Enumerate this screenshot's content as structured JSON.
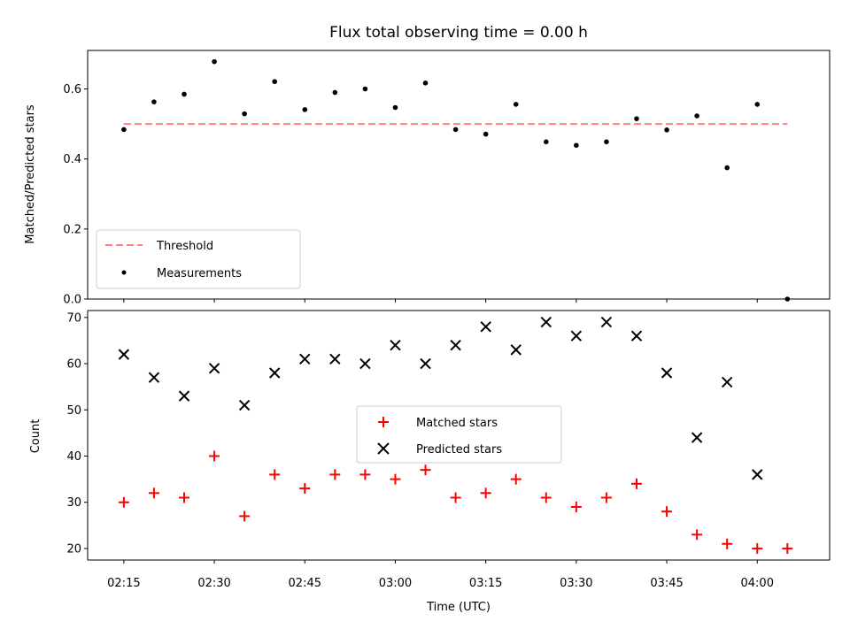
{
  "chart_data": [
    {
      "type": "scatter",
      "title": "Flux total observing time = 0.00 h",
      "ylabel": "Matched/Predicted stars",
      "xlabel": "",
      "x_time_axis": true,
      "xlim": [
        "02:09",
        "04:12"
      ],
      "ylim": [
        0,
        0.71
      ],
      "yticks": [
        0.0,
        0.2,
        0.4,
        0.6
      ],
      "ytick_labels": [
        "0.0",
        "0.2",
        "0.4",
        "0.6"
      ],
      "grid": false,
      "legend": "lower-left",
      "threshold": {
        "name": "Threshold",
        "value": 0.5,
        "x_start": "02:15",
        "x_end": "04:05",
        "color": "#ff7f7f"
      },
      "series": [
        {
          "name": "Measurements",
          "color": "#000000",
          "marker": "dot",
          "x": [
            "02:15",
            "02:20",
            "02:25",
            "02:30",
            "02:35",
            "02:40",
            "02:45",
            "02:50",
            "02:55",
            "03:00",
            "03:05",
            "03:10",
            "03:15",
            "03:20",
            "03:25",
            "03:30",
            "03:35",
            "03:40",
            "03:45",
            "03:50",
            "03:55",
            "04:00",
            "04:05"
          ],
          "y": [
            0.484,
            0.563,
            0.585,
            0.678,
            0.529,
            0.621,
            0.541,
            0.59,
            0.6,
            0.547,
            0.617,
            0.484,
            0.471,
            0.556,
            0.449,
            0.439,
            0.449,
            0.515,
            0.483,
            0.523,
            0.375,
            0.556,
            0.0
          ]
        }
      ]
    },
    {
      "type": "scatter",
      "title": "",
      "ylabel": "Count",
      "xlabel": "Time (UTC)",
      "x_time_axis": true,
      "xlim": [
        "02:09",
        "04:12"
      ],
      "ylim": [
        17.5,
        71.5
      ],
      "yticks": [
        20,
        30,
        40,
        50,
        60,
        70
      ],
      "ytick_labels": [
        "20",
        "30",
        "40",
        "50",
        "60",
        "70"
      ],
      "xticks": [
        "02:15",
        "02:30",
        "02:45",
        "03:00",
        "03:15",
        "03:30",
        "03:45",
        "04:00"
      ],
      "xtick_labels": [
        "02:15",
        "02:30",
        "02:45",
        "03:00",
        "03:15",
        "03:30",
        "03:45",
        "04:00"
      ],
      "grid": false,
      "legend": "center",
      "series": [
        {
          "name": "Matched stars",
          "color": "#ff0000",
          "marker": "plus",
          "x": [
            "02:15",
            "02:20",
            "02:25",
            "02:30",
            "02:35",
            "02:40",
            "02:45",
            "02:50",
            "02:55",
            "03:00",
            "03:05",
            "03:10",
            "03:15",
            "03:20",
            "03:25",
            "03:30",
            "03:35",
            "03:40",
            "03:45",
            "03:50",
            "03:55",
            "04:00",
            "04:05"
          ],
          "y": [
            30,
            32,
            31,
            40,
            27,
            36,
            33,
            36,
            36,
            35,
            37,
            31,
            32,
            35,
            31,
            29,
            31,
            34,
            28,
            23,
            21,
            20,
            20
          ]
        },
        {
          "name": "Predicted stars",
          "color": "#000000",
          "marker": "x",
          "x": [
            "02:15",
            "02:20",
            "02:25",
            "02:30",
            "02:35",
            "02:40",
            "02:45",
            "02:50",
            "02:55",
            "03:00",
            "03:05",
            "03:10",
            "03:15",
            "03:20",
            "03:25",
            "03:30",
            "03:35",
            "03:40",
            "03:45",
            "03:50",
            "03:55",
            "04:00"
          ],
          "y": [
            62,
            57,
            53,
            59,
            51,
            58,
            61,
            61,
            60,
            64,
            60,
            64,
            68,
            63,
            69,
            66,
            69,
            66,
            58,
            44,
            56,
            36
          ]
        }
      ]
    }
  ]
}
